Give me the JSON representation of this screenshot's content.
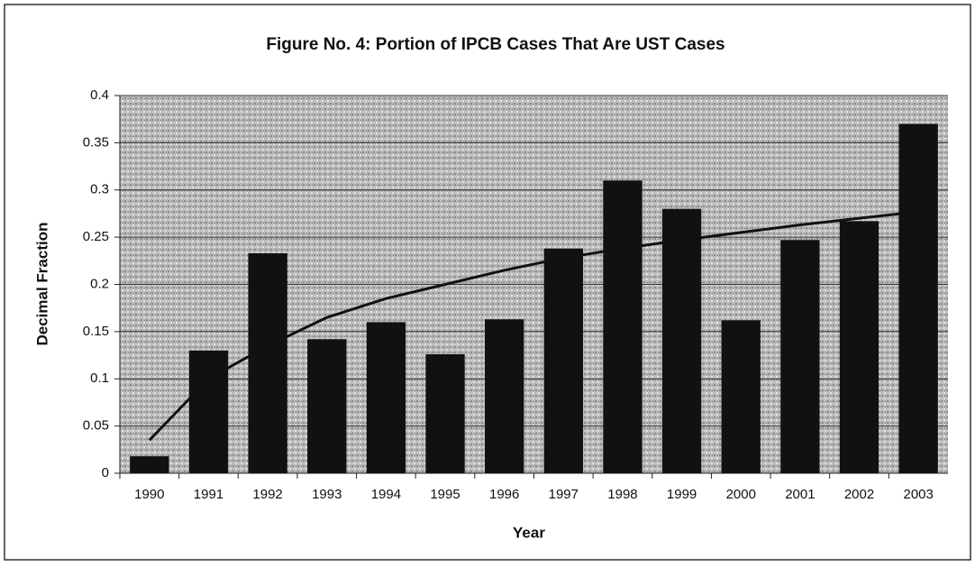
{
  "chart_data": {
    "type": "bar",
    "title": "Figure No. 4:  Portion of IPCB Cases That Are UST Cases",
    "x_label": "Year",
    "y_label": "Decimal Fraction",
    "categories": [
      "1990",
      "1991",
      "1992",
      "1993",
      "1994",
      "1995",
      "1996",
      "1997",
      "1998",
      "1999",
      "2000",
      "2001",
      "2002",
      "2003"
    ],
    "values": [
      0.018,
      0.13,
      0.233,
      0.142,
      0.16,
      0.126,
      0.163,
      0.238,
      0.31,
      0.28,
      0.162,
      0.247,
      0.267,
      0.37
    ],
    "color": "#111111",
    "trend": {
      "color": "#111111",
      "values": [
        0.035,
        0.1,
        0.135,
        0.165,
        0.185,
        0.2,
        0.215,
        0.228,
        0.238,
        0.247,
        0.255,
        0.263,
        0.27,
        0.277
      ]
    },
    "ylim": [
      0,
      0.4
    ],
    "yticks": [
      0,
      0.05,
      0.1,
      0.15,
      0.2,
      0.25,
      0.3,
      0.35,
      0.4
    ],
    "grid": true
  }
}
